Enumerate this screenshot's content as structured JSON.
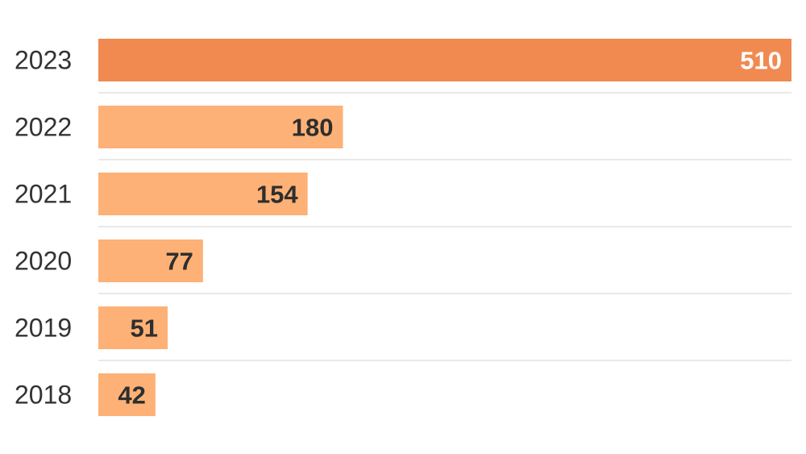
{
  "chart_data": {
    "type": "bar",
    "orientation": "horizontal",
    "title": "",
    "xlabel": "",
    "ylabel": "",
    "categories": [
      "2023",
      "2022",
      "2021",
      "2020",
      "2019",
      "2018"
    ],
    "values": [
      510,
      180,
      154,
      77,
      51,
      42
    ],
    "xlim": [
      0,
      510
    ],
    "grid": false,
    "legend": "none",
    "colors": {
      "highlight": "#f08a51",
      "default": "#fdb176",
      "highlight_label": "#ffffff",
      "default_label": "#2e2e2e"
    },
    "highlight_category": "2023"
  }
}
